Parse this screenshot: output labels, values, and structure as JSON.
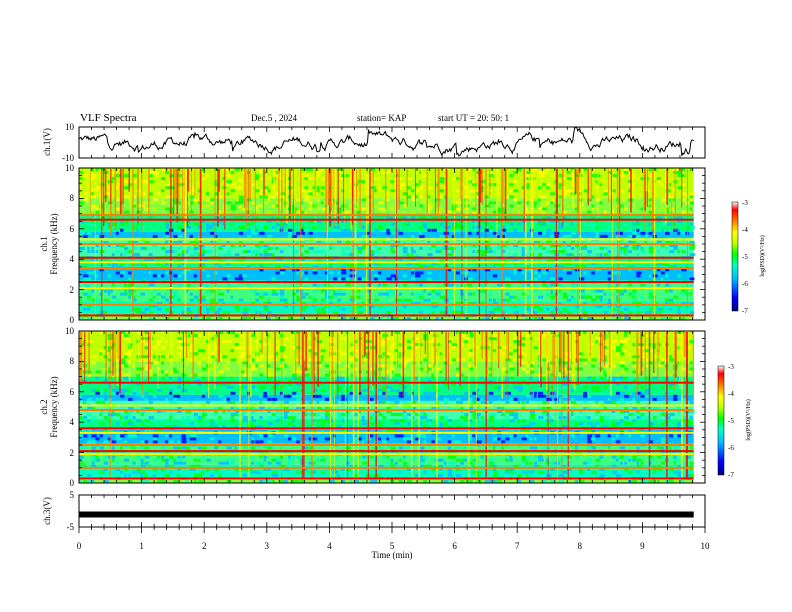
{
  "header": {
    "title": "VLF Spectra",
    "date": "Dec.5 , 2024",
    "station": "station= KAP",
    "start": "start UT = 20: 50: 1"
  },
  "colors": {
    "frame": "#000000",
    "background": "#ffffff",
    "colormap": [
      "#00007f",
      "#0000ff",
      "#00bfff",
      "#00ffbf",
      "#00ff00",
      "#bfff00",
      "#ffff00",
      "#ff8000",
      "#ff0000",
      "#ffffff"
    ]
  },
  "chart_data": [
    {
      "type": "line",
      "name": "ch1-waveform",
      "ylabel": "ch.1(V)",
      "ylim": [
        -10,
        10
      ],
      "ytick_labels": [
        "10",
        "-10"
      ],
      "xlim": [
        0,
        10
      ],
      "x_end": 9.82,
      "description_series": "noisy voltage trace between about -8 and 10 V"
    },
    {
      "type": "heatmap",
      "name": "ch1-spectrogram",
      "ylabel_line1": "ch.1",
      "ylabel_line2": "Frequency (kHz)",
      "ylim": [
        0,
        10
      ],
      "ytick_labels": [
        "0",
        "2",
        "4",
        "6",
        "8",
        "10"
      ],
      "xlim": [
        0,
        10
      ],
      "x_end": 9.82,
      "bands_khz": [
        0.3,
        1.0,
        2.1,
        2.5,
        3.4,
        3.8,
        4.1,
        5.0,
        5.3,
        6.6,
        6.9
      ],
      "colorbar": {
        "label": "log(PSD)(V²/Hz)",
        "ticks": [
          "-3",
          "-4",
          "-5",
          "-6",
          "-7"
        ],
        "range": [
          -7,
          -3
        ]
      }
    },
    {
      "type": "heatmap",
      "name": "ch2-spectrogram",
      "ylabel_line1": "ch.2",
      "ylabel_line2": "Frequency (kHz)",
      "ylim": [
        0,
        10
      ],
      "ytick_labels": [
        "0",
        "2",
        "4",
        "6",
        "8",
        "10"
      ],
      "xlim": [
        0,
        10
      ],
      "x_end": 9.82,
      "bands_khz": [
        0.3,
        1.0,
        1.9,
        2.1,
        2.5,
        3.3,
        3.6,
        4.8,
        5.1,
        6.6
      ],
      "colorbar": {
        "label": "log(PSD)(V²/Hz)",
        "ticks": [
          "-3",
          "-4",
          "-5",
          "-6",
          "-7"
        ],
        "range": [
          -7,
          -3
        ]
      }
    },
    {
      "type": "line",
      "name": "ch3-waveform",
      "ylabel": "ch.3(V)",
      "ylim": [
        -5,
        5
      ],
      "ytick_labels": [
        "5",
        "-5"
      ],
      "xlim": [
        0,
        10
      ],
      "x_end": 9.82,
      "value": -1.1
    }
  ],
  "xaxis": {
    "label": "Time (min)",
    "tick_labels": [
      "0",
      "1",
      "2",
      "3",
      "4",
      "5",
      "6",
      "7",
      "8",
      "9",
      "10"
    ]
  }
}
